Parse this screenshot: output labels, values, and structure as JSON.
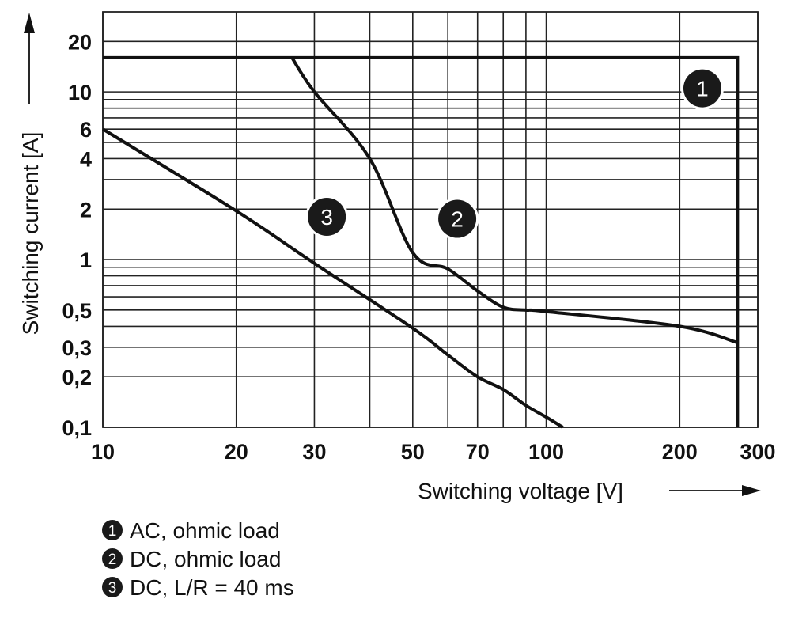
{
  "chart_data": {
    "type": "line",
    "xlabel": "Switching voltage [V]",
    "ylabel": "Switching current [A]",
    "xscale": "log",
    "yscale": "log",
    "xlim": [
      10,
      300
    ],
    "ylim": [
      0.1,
      30
    ],
    "grid": true,
    "x_ticks": [
      {
        "value": 10,
        "label": "10"
      },
      {
        "value": 20,
        "label": "20"
      },
      {
        "value": 30,
        "label": "30"
      },
      {
        "value": 50,
        "label": "50"
      },
      {
        "value": 70,
        "label": "70"
      },
      {
        "value": 100,
        "label": "100"
      },
      {
        "value": 200,
        "label": "200"
      },
      {
        "value": 300,
        "label": "300"
      }
    ],
    "y_ticks": [
      {
        "value": 20,
        "label": "20"
      },
      {
        "value": 10,
        "label": "10"
      },
      {
        "value": 6,
        "label": "6"
      },
      {
        "value": 4,
        "label": "4"
      },
      {
        "value": 2,
        "label": "2"
      },
      {
        "value": 1,
        "label": "1"
      },
      {
        "value": 0.5,
        "label": "0,5"
      },
      {
        "value": 0.3,
        "label": "0,3"
      },
      {
        "value": 0.2,
        "label": "0,2"
      },
      {
        "value": 0.1,
        "label": "0,1"
      }
    ],
    "x_gridlines": [
      10,
      20,
      30,
      40,
      50,
      60,
      70,
      80,
      90,
      100,
      200,
      300
    ],
    "y_gridlines": [
      0.1,
      0.2,
      0.3,
      0.4,
      0.5,
      0.6,
      0.7,
      0.8,
      0.9,
      1,
      2,
      3,
      4,
      5,
      6,
      7,
      8,
      9,
      10,
      20
    ],
    "series": [
      {
        "marker": "1",
        "name": "AC, ohmic load",
        "x": [
          10,
          270,
          270
        ],
        "y": [
          16,
          16,
          0.1
        ],
        "marker_at": [
          225,
          10.5
        ]
      },
      {
        "marker": "2",
        "name": "DC, ohmic load",
        "x": [
          26.7,
          30,
          40,
          50,
          60,
          70,
          80,
          90,
          100,
          200,
          270
        ],
        "y": [
          16,
          10,
          4,
          1.1,
          0.88,
          0.65,
          0.52,
          0.5,
          0.49,
          0.4,
          0.32
        ],
        "marker_at": [
          63,
          1.75
        ]
      },
      {
        "marker": "3",
        "name": "DC, L/R = 40 ms",
        "x": [
          10,
          20,
          30,
          50,
          60,
          70,
          80,
          90,
          100,
          109
        ],
        "y": [
          6,
          1.95,
          0.95,
          0.39,
          0.27,
          0.2,
          0.168,
          0.135,
          0.115,
          0.1
        ],
        "marker_at": [
          32,
          1.8
        ]
      }
    ],
    "legend": {
      "placement": "bottom-left"
    }
  }
}
